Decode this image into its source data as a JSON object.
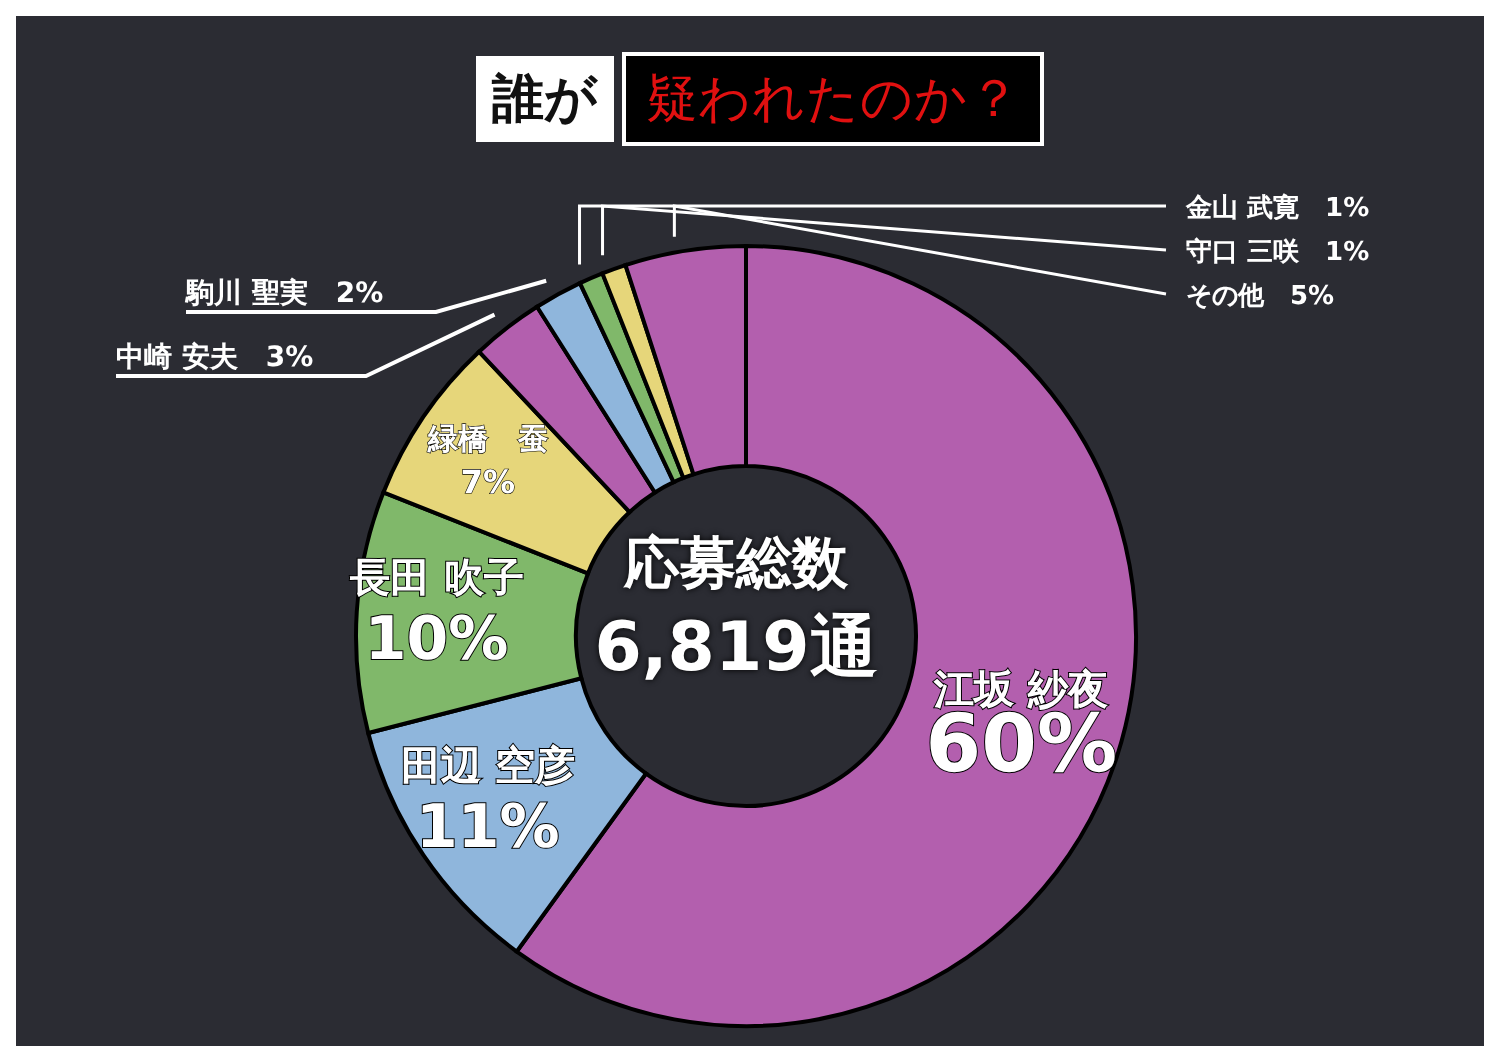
{
  "chart_data": {
    "type": "donut",
    "title": "誰が",
    "subtitle": "疑われたのか？",
    "categories": [
      "江坂 紗夜",
      "田辺 空彦",
      "長田 吹子",
      "緑橋　蚕",
      "中崎 安夫",
      "駒川 聖実",
      "金山 武寛",
      "守口 三咲",
      "その他"
    ],
    "values": [
      60,
      11,
      10,
      7,
      3,
      2,
      1,
      1,
      5
    ],
    "value_labels": [
      "60%",
      "11%",
      "10%",
      "7%",
      "3%",
      "2%",
      "1%",
      "1%",
      "5%"
    ],
    "colors": [
      "#b35fae",
      "#8fb6dc",
      "#80b86a",
      "#e6d67a",
      "#b35fae",
      "#8fb6dc",
      "#80b86a",
      "#e6d67a",
      "#b35fae"
    ],
    "annotations": [
      "応募総数",
      "6,819通"
    ]
  }
}
